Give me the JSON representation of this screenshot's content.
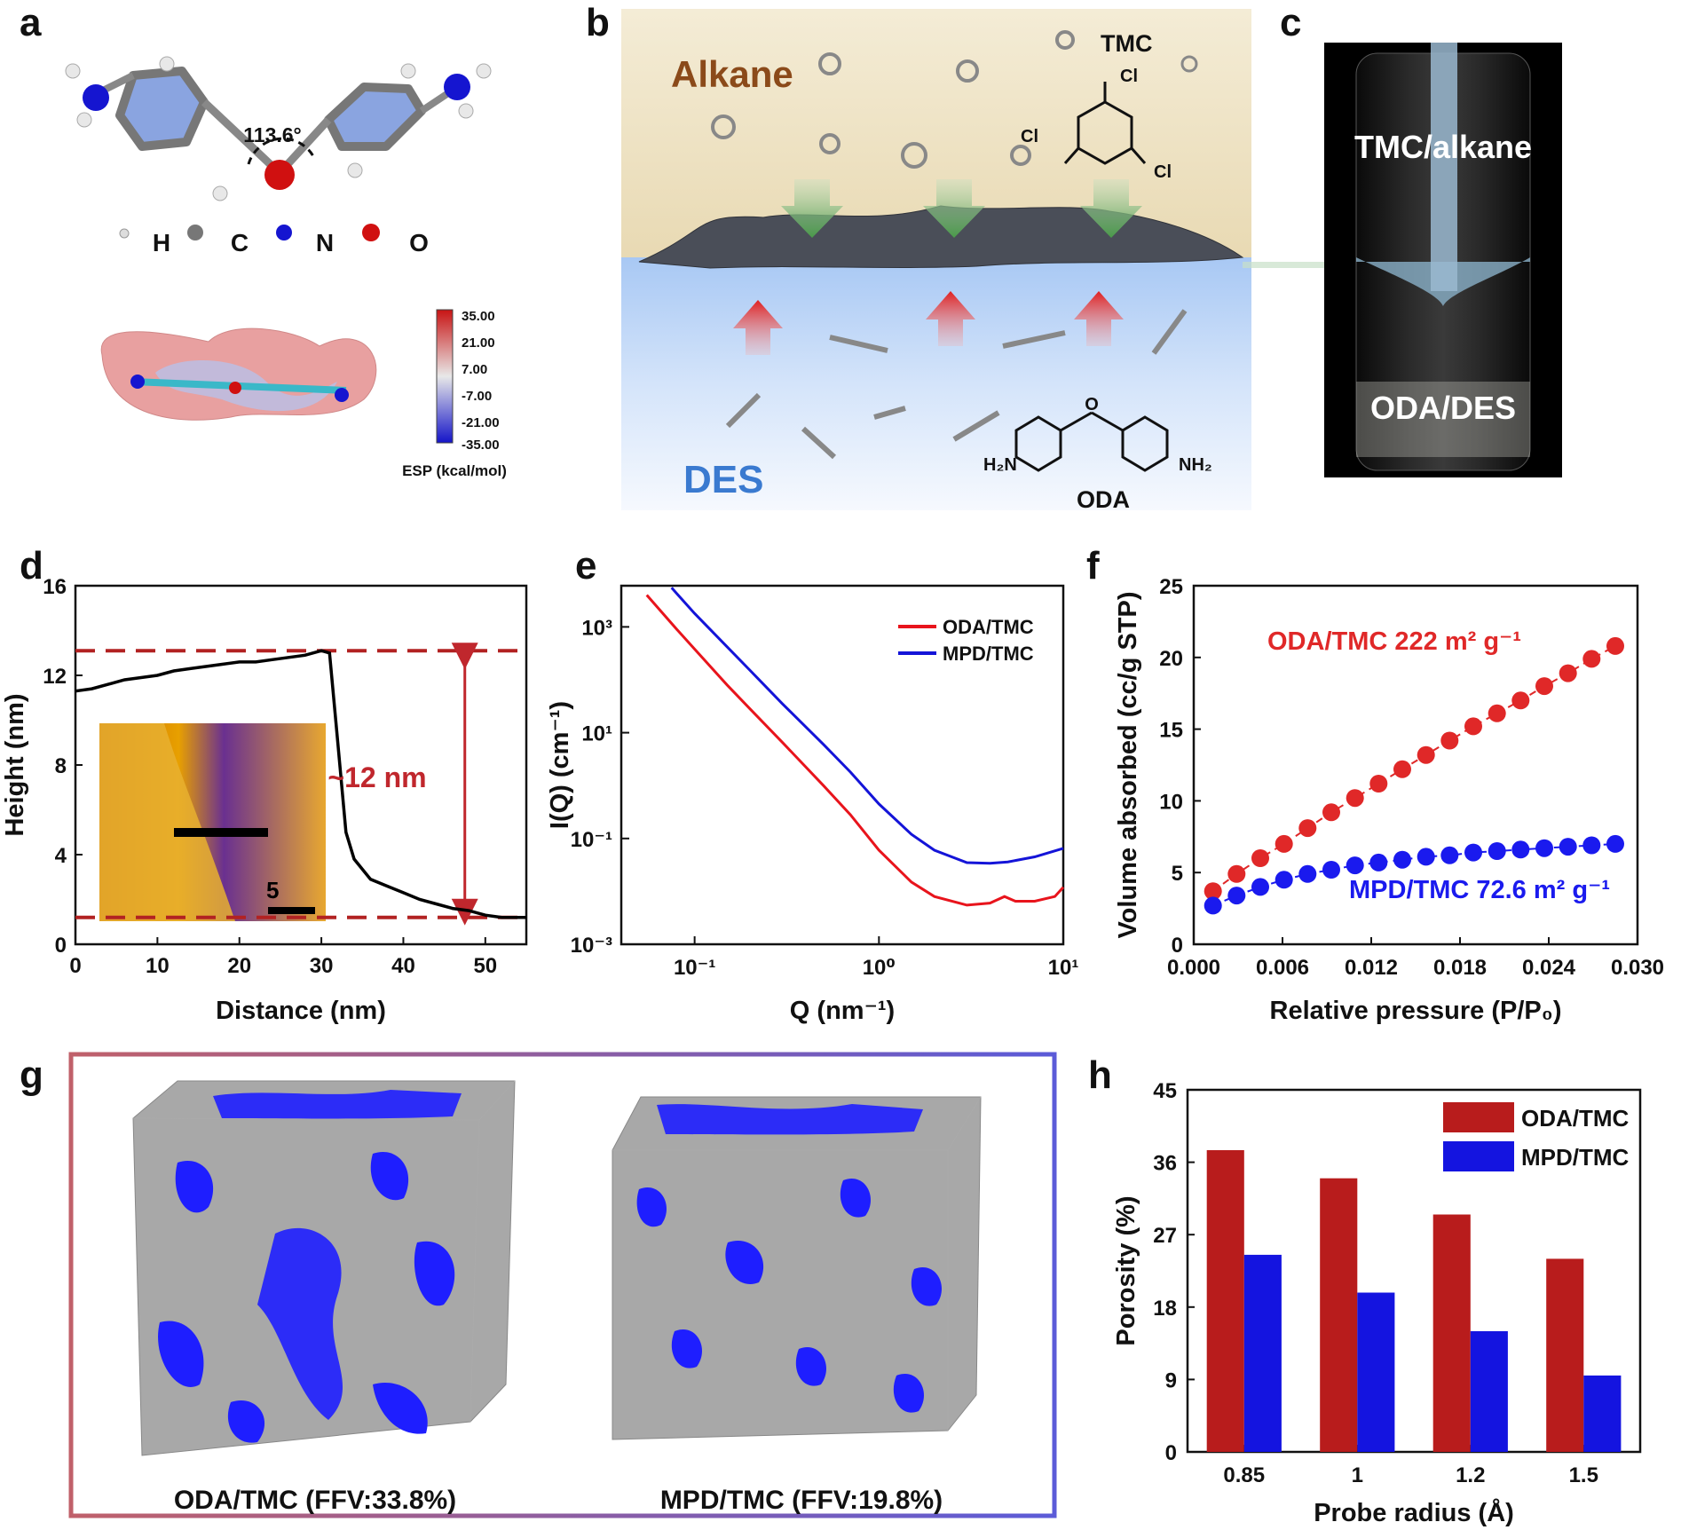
{
  "figure": {
    "panel_a": {
      "label": "a",
      "angle_label": "113.6°",
      "atom_legend": [
        "H",
        "C",
        "N",
        "O"
      ],
      "colorbar_ticks": [
        "35.00",
        "21.00",
        "7.00",
        "-7.00",
        "-21.00",
        "-35.00"
      ],
      "colorbar_title": "ESP (kcal/mol)"
    },
    "panel_b": {
      "label": "b",
      "top_phase": "Alkane",
      "bottom_phase": "DES",
      "monomer_top": "TMC",
      "monomer_bottom": "ODA",
      "cl_label": "Cl",
      "nh2_left": "H₂N",
      "nh2_right": "NH₂",
      "o_label": "O"
    },
    "panel_c": {
      "label": "c",
      "top_text": "TMC/alkane",
      "bottom_text": "ODA/DES"
    },
    "panel_g": {
      "label": "g",
      "caption_left": "ODA/TMC (FFV:33.8%)",
      "caption_right": "MPD/TMC (FFV:19.8%)",
      "colors": {
        "border_left": "#c0606a",
        "border_right": "#5b5bd8",
        "pore": "#1e1eff",
        "matrix": "#a8a8a8"
      }
    }
  },
  "chart_data": [
    {
      "panel": "d",
      "type": "line",
      "xlabel": "Distance (nm)",
      "ylabel": "Height (nm)",
      "xlim": [
        0,
        55
      ],
      "ylim": [
        0,
        16
      ],
      "xticks": [
        "0",
        "10",
        "20",
        "30",
        "40",
        "50"
      ],
      "yticks": [
        "0",
        "4",
        "8",
        "12",
        "16"
      ],
      "series": [
        {
          "color": "#000000",
          "x": [
            0,
            2,
            4,
            6,
            8,
            10,
            12,
            14,
            16,
            18,
            20,
            22,
            24,
            26,
            28,
            30,
            31,
            32,
            33,
            34,
            36,
            38,
            40,
            42,
            44,
            46,
            48,
            50,
            52,
            54,
            55
          ],
          "y": [
            11.3,
            11.4,
            11.6,
            11.8,
            11.9,
            12.0,
            12.2,
            12.3,
            12.4,
            12.5,
            12.6,
            12.6,
            12.7,
            12.8,
            12.9,
            13.1,
            13.0,
            9.0,
            5.0,
            3.8,
            2.9,
            2.6,
            2.3,
            2.0,
            1.8,
            1.6,
            1.5,
            1.3,
            1.2,
            1.2,
            1.2
          ]
        }
      ],
      "reference_lines": [
        13.1,
        1.2
      ],
      "annotation": "~12 nm",
      "inset_scale_label": "5",
      "colors": {
        "dashed": "#b22222",
        "arrow": "#c0272d"
      }
    },
    {
      "panel": "e",
      "type": "line",
      "xscale": "log",
      "yscale": "log",
      "xlabel": "Q (nm⁻¹)",
      "ylabel": "I(Q)  (cm⁻¹)",
      "xlim": [
        0.04,
        10
      ],
      "ylim": [
        0.001,
        6000
      ],
      "xticks": [
        "10⁻¹",
        "10⁰",
        "10¹"
      ],
      "yticks": [
        "10³",
        "10¹",
        "10⁻¹",
        "10⁻³"
      ],
      "legend_position": "top-right",
      "series": [
        {
          "name": "ODA/TMC",
          "color": "#e8141c",
          "x": [
            0.055,
            0.08,
            0.1,
            0.15,
            0.2,
            0.3,
            0.5,
            0.7,
            1.0,
            1.5,
            2.0,
            3.0,
            4.0,
            4.8,
            5.5,
            7.0,
            9.0,
            10.0
          ],
          "y": [
            4000,
            900,
            380,
            80,
            28,
            6.5,
            1.0,
            0.28,
            0.06,
            0.015,
            0.008,
            0.0055,
            0.006,
            0.008,
            0.0065,
            0.0065,
            0.008,
            0.012
          ]
        },
        {
          "name": "MPD/TMC",
          "color": "#1414d8",
          "x": [
            0.075,
            0.1,
            0.15,
            0.2,
            0.3,
            0.5,
            0.7,
            1.0,
            1.5,
            2.0,
            3.0,
            4.0,
            5.0,
            7.0,
            10.0
          ],
          "y": [
            5500,
            1800,
            420,
            150,
            35,
            6.0,
            1.8,
            0.45,
            0.12,
            0.06,
            0.035,
            0.034,
            0.036,
            0.045,
            0.065
          ]
        }
      ]
    },
    {
      "panel": "f",
      "type": "scatter",
      "xlabel": "Relative pressure (P/P₀)",
      "ylabel": "Volume absorbed (cc/g STP)",
      "xlim": [
        0,
        0.03
      ],
      "ylim": [
        0,
        25
      ],
      "xticks": [
        "0.000",
        "0.006",
        "0.012",
        "0.018",
        "0.024",
        "0.030"
      ],
      "yticks": [
        "0",
        "5",
        "10",
        "15",
        "20",
        "25"
      ],
      "annotations": [
        "ODA/TMC 222 m² g⁻¹",
        "MPD/TMC 72.6 m² g⁻¹"
      ],
      "series": [
        {
          "name": "ODA/TMC",
          "color": "#e02828",
          "x": [
            0.0013,
            0.0029,
            0.0045,
            0.0061,
            0.0077,
            0.0093,
            0.0109,
            0.0125,
            0.0141,
            0.0157,
            0.0173,
            0.0189,
            0.0205,
            0.0221,
            0.0237,
            0.0253,
            0.0269,
            0.0285
          ],
          "y": [
            3.7,
            4.9,
            6.0,
            7.0,
            8.1,
            9.2,
            10.2,
            11.2,
            12.2,
            13.2,
            14.2,
            15.2,
            16.1,
            17.0,
            18.0,
            18.9,
            19.9,
            20.8
          ]
        },
        {
          "name": "MPD/TMC",
          "color": "#1a1aee",
          "x": [
            0.0013,
            0.0029,
            0.0045,
            0.0061,
            0.0077,
            0.0093,
            0.0109,
            0.0125,
            0.0141,
            0.0157,
            0.0173,
            0.0189,
            0.0205,
            0.0221,
            0.0237,
            0.0253,
            0.0269,
            0.0285
          ],
          "y": [
            2.7,
            3.4,
            4.0,
            4.5,
            4.9,
            5.2,
            5.5,
            5.7,
            5.9,
            6.1,
            6.2,
            6.4,
            6.5,
            6.6,
            6.7,
            6.8,
            6.9,
            7.0
          ]
        }
      ]
    },
    {
      "panel": "h",
      "type": "bar",
      "xlabel": "Probe radius (Å)",
      "ylabel": "Porosity (%)",
      "ylim": [
        0,
        45
      ],
      "yticks": [
        "0",
        "9",
        "18",
        "27",
        "36",
        "45"
      ],
      "categories": [
        "0.85",
        "1",
        "1.2",
        "1.5"
      ],
      "legend_position": "top-right",
      "series": [
        {
          "name": "ODA/TMC",
          "color": "#b81c1c",
          "values": [
            37.5,
            34.0,
            29.5,
            24.0
          ]
        },
        {
          "name": "MPD/TMC",
          "color": "#1414e0",
          "values": [
            24.5,
            19.8,
            15.0,
            9.5
          ]
        }
      ]
    }
  ]
}
